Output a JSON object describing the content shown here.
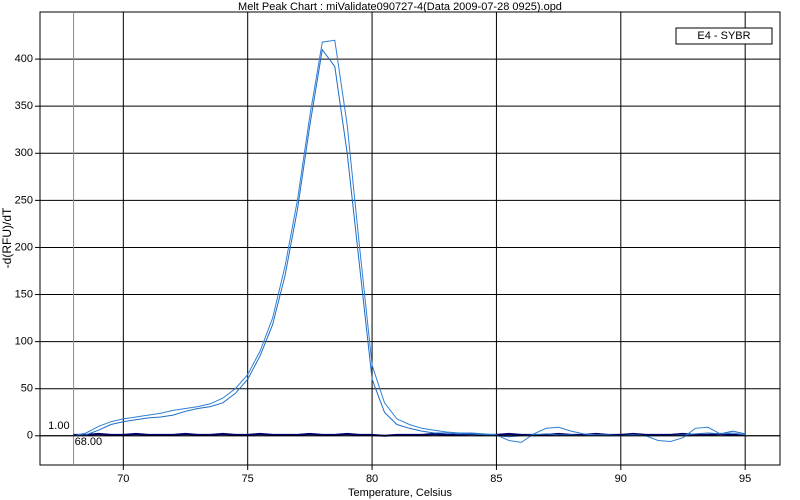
{
  "chart_data": {
    "type": "line",
    "title": "Melt Peak Chart : miValidate090727-4(Data 2009-07-28 0925).opd",
    "x_label": "Temperature, Celsius",
    "y_label": "-d(RFU)/dT",
    "x": [
      68,
      68.5,
      69,
      69.5,
      70,
      70.5,
      71,
      71.5,
      72,
      72.5,
      73,
      73.5,
      74,
      74.5,
      75,
      75.5,
      76,
      76.5,
      77,
      77.5,
      78,
      78.5,
      79,
      79.5,
      80,
      80.5,
      81,
      81.5,
      82,
      82.5,
      83,
      83.5,
      84,
      84.5,
      85,
      85.5,
      86,
      86.5,
      87,
      87.5,
      88,
      88.5,
      89,
      89.5,
      90,
      90.5,
      91,
      91.5,
      92,
      92.5,
      93,
      93.5,
      94,
      94.5,
      95
    ],
    "series": [
      {
        "name": "E4 - SYBR",
        "color": "#2f7fd6",
        "values": [
          0,
          3,
          10,
          15,
          18,
          20,
          22,
          24,
          27,
          29,
          31,
          34,
          40,
          50,
          65,
          90,
          125,
          180,
          250,
          340,
          418,
          420,
          330,
          200,
          75,
          35,
          18,
          12,
          8,
          6,
          4,
          3,
          3,
          2,
          1,
          -5,
          -7,
          2,
          8,
          9,
          5,
          2,
          1,
          1,
          0,
          1,
          0,
          -5,
          -6,
          -2,
          8,
          9,
          2,
          3,
          1
        ]
      },
      {
        "color": "#1e6cc4",
        "values": [
          0,
          1,
          6,
          12,
          15,
          17,
          19,
          20,
          22,
          26,
          29,
          31,
          35,
          45,
          60,
          85,
          118,
          170,
          240,
          330,
          410,
          392,
          300,
          180,
          60,
          25,
          12,
          8,
          5,
          3,
          3,
          2,
          2,
          1,
          0,
          -1,
          0,
          1,
          2,
          1,
          1,
          0,
          1,
          0,
          0,
          1,
          0,
          0,
          0,
          1,
          2,
          3,
          2,
          5,
          2
        ]
      },
      {
        "color": "#00006e",
        "values": [
          1,
          1,
          2,
          1,
          1,
          2,
          1,
          1,
          1,
          2,
          1,
          1,
          2,
          1,
          1,
          2,
          1,
          1,
          1,
          2,
          1,
          1,
          2,
          1,
          1,
          0,
          1,
          1,
          1,
          2,
          1,
          1,
          2,
          1,
          1,
          2,
          1,
          1,
          1,
          2,
          1,
          1,
          2,
          1,
          1,
          2,
          1,
          1,
          1,
          2,
          1,
          1,
          2,
          1,
          1
        ]
      }
    ],
    "xlim": [
      66.65,
      96.4
    ],
    "xticks": [
      70,
      75,
      80,
      85,
      90,
      95
    ],
    "ylim": [
      -31,
      450
    ],
    "yticks": [
      0,
      50,
      100,
      150,
      200,
      250,
      300,
      350,
      400
    ],
    "grid": true,
    "legend": "upper right",
    "cursor": {
      "x": {
        "value": 68,
        "label": "68.00"
      },
      "y": {
        "value": 1,
        "label": "1.00"
      },
      "color": "#e0703a"
    }
  }
}
